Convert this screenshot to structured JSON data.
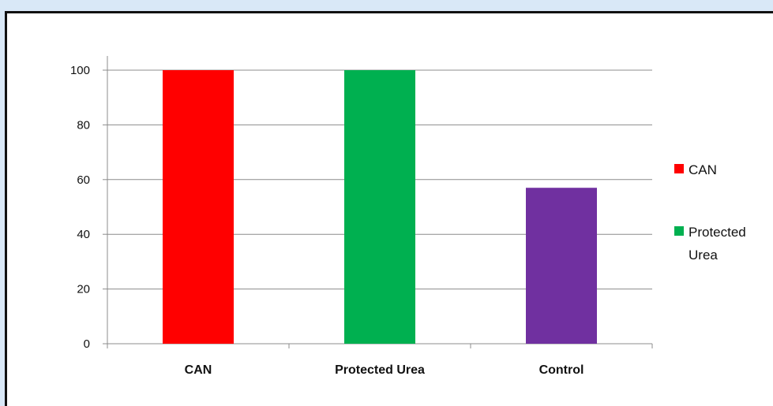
{
  "chart_data": {
    "type": "bar",
    "title": "",
    "xlabel": "",
    "ylabel": "",
    "categories": [
      "CAN",
      "Protected Urea",
      "Control"
    ],
    "series": [
      {
        "values": [
          100,
          100,
          57
        ],
        "colors": [
          "#ff0000",
          "#00b050",
          "#7030a0"
        ]
      }
    ],
    "ylim": [
      0,
      100
    ],
    "yticks": [
      0,
      20,
      40,
      60,
      80,
      100
    ],
    "grid": true,
    "legend": {
      "position": "right",
      "entries": [
        {
          "label_lines": [
            "CAN"
          ],
          "color": "#ff0000"
        },
        {
          "label_lines": [
            "Protected",
            "Urea"
          ],
          "color": "#00b050"
        }
      ]
    }
  }
}
